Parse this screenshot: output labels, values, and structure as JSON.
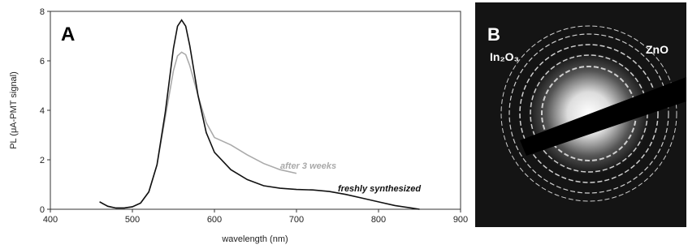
{
  "chart_data": {
    "type": "line",
    "panel_label": "A",
    "x_label": "wavelength (nm)",
    "y_label": "PL (μA-PMT signal)",
    "xlim": [
      400,
      900
    ],
    "xticks": [
      400,
      500,
      600,
      700,
      800,
      900
    ],
    "ylim": [
      0,
      8
    ],
    "yticks": [
      0,
      2,
      4,
      6,
      8
    ],
    "series": [
      {
        "name": "after 3 weeks",
        "color": "#aaaaaa",
        "x": [
          460,
          470,
          480,
          490,
          500,
          510,
          520,
          530,
          540,
          550,
          555,
          560,
          565,
          570,
          580,
          590,
          600,
          620,
          640,
          660,
          680,
          700
        ],
        "values": [
          0.3,
          0.12,
          0.05,
          0.05,
          0.1,
          0.25,
          0.7,
          1.8,
          3.7,
          5.6,
          6.2,
          6.35,
          6.25,
          5.8,
          4.6,
          3.5,
          2.9,
          2.6,
          2.2,
          1.85,
          1.6,
          1.45
        ]
      },
      {
        "name": "freshly synthesized",
        "color": "#111111",
        "x": [
          460,
          470,
          480,
          490,
          500,
          510,
          520,
          530,
          540,
          550,
          555,
          560,
          565,
          570,
          580,
          590,
          600,
          620,
          640,
          660,
          680,
          700,
          720,
          740,
          760,
          780,
          800,
          820,
          840,
          850
        ],
        "values": [
          0.3,
          0.12,
          0.05,
          0.05,
          0.1,
          0.25,
          0.7,
          1.8,
          3.9,
          6.5,
          7.4,
          7.65,
          7.4,
          6.6,
          4.6,
          3.1,
          2.3,
          1.6,
          1.2,
          0.95,
          0.85,
          0.8,
          0.78,
          0.72,
          0.6,
          0.45,
          0.3,
          0.15,
          0.05,
          0.0
        ]
      }
    ]
  },
  "image_panel": {
    "label": "B",
    "annotations": [
      "In₂O₃",
      "ZnO"
    ]
  }
}
